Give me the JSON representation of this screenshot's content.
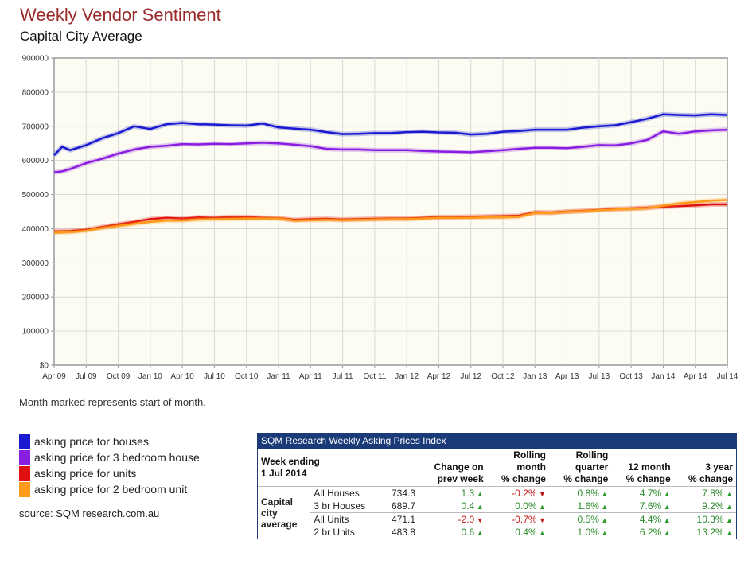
{
  "title": "Weekly Vendor Sentiment",
  "subtitle": "Capital City Average",
  "note": "Month marked represents start of month.",
  "source": "source: SQM research.com.au",
  "legend": [
    {
      "label": "asking price for houses",
      "color": "#1a1ad0"
    },
    {
      "label": "asking price for 3 bedroom house",
      "color": "#8a1ee0"
    },
    {
      "label": "asking price for units",
      "color": "#e01010"
    },
    {
      "label": "asking price for 2 bedroom unit",
      "color": "#ff9a1a"
    }
  ],
  "chart_data": {
    "type": "line",
    "title": "Weekly Vendor Sentiment",
    "subtitle": "Capital City Average",
    "xlabel": "",
    "ylabel": "",
    "ylim": [
      0,
      900000
    ],
    "y_ticks": [
      "$0",
      "100000",
      "200000",
      "300000",
      "400000",
      "500000",
      "600000",
      "700000",
      "800000",
      "900000"
    ],
    "x_ticks": [
      "Apr 09",
      "Jul 09",
      "Oct 09",
      "Jan 10",
      "Apr 10",
      "Jul 10",
      "Oct 10",
      "Jan 11",
      "Apr 11",
      "Jul 11",
      "Oct 11",
      "Jan 12",
      "Apr 12",
      "Jul 12",
      "Oct 12",
      "Jan 13",
      "Apr 13",
      "Jul 13",
      "Oct 13",
      "Jan 14",
      "Apr 14",
      "Jul 14"
    ],
    "x_index_range": [
      0,
      21
    ],
    "grid": true,
    "series": [
      {
        "name": "asking price for houses",
        "color": "#1a1ad0",
        "x": [
          0,
          0.25,
          0.5,
          1,
          1.5,
          2,
          2.5,
          3,
          3.5,
          4,
          4.5,
          5,
          5.5,
          6,
          6.5,
          7,
          7.5,
          8,
          8.5,
          9,
          9.5,
          10,
          10.5,
          11,
          11.5,
          12,
          12.5,
          13,
          13.5,
          14,
          14.5,
          15,
          15.5,
          16,
          16.5,
          17,
          17.5,
          18,
          18.5,
          19,
          19.5,
          20,
          20.5,
          21
        ],
        "values": [
          615000,
          640000,
          630000,
          645000,
          665000,
          680000,
          700000,
          692000,
          706000,
          710000,
          706000,
          705000,
          703000,
          702000,
          708000,
          697000,
          693000,
          690000,
          683000,
          677000,
          678000,
          680000,
          680000,
          683000,
          684000,
          682000,
          681000,
          676000,
          678000,
          684000,
          686000,
          690000,
          690000,
          690000,
          696000,
          700000,
          703000,
          712000,
          722000,
          735000,
          733000,
          732000,
          735000,
          733000
        ]
      },
      {
        "name": "asking price for 3 bedroom house",
        "color": "#8a1ee0",
        "x": [
          0,
          0.25,
          0.5,
          1,
          1.5,
          2,
          2.5,
          3,
          3.5,
          4,
          4.5,
          5,
          5.5,
          6,
          6.5,
          7,
          7.5,
          8,
          8.5,
          9,
          9.5,
          10,
          10.5,
          11,
          11.5,
          12,
          12.5,
          13,
          13.5,
          14,
          14.5,
          15,
          15.5,
          16,
          16.5,
          17,
          17.5,
          18,
          18.5,
          19,
          19.5,
          20,
          20.5,
          21
        ],
        "values": [
          565000,
          568000,
          575000,
          592000,
          605000,
          620000,
          632000,
          640000,
          643000,
          648000,
          647000,
          649000,
          648000,
          650000,
          652000,
          650000,
          646000,
          642000,
          634000,
          632000,
          632000,
          630000,
          630000,
          630000,
          628000,
          626000,
          625000,
          624000,
          627000,
          630000,
          634000,
          637000,
          637000,
          636000,
          640000,
          645000,
          644000,
          650000,
          660000,
          685000,
          678000,
          685000,
          688000,
          690000
        ]
      },
      {
        "name": "asking price for units",
        "color": "#e01010",
        "x": [
          0,
          0.5,
          1,
          1.5,
          2,
          2.5,
          3,
          3.5,
          4,
          4.5,
          5,
          5.5,
          6,
          6.5,
          7,
          7.5,
          8,
          8.5,
          9,
          9.5,
          10,
          10.5,
          11,
          11.5,
          12,
          12.5,
          13,
          13.5,
          14,
          14.5,
          15,
          15.5,
          16,
          16.5,
          17,
          17.5,
          18,
          18.5,
          19,
          19.5,
          20,
          20.5,
          21
        ],
        "values": [
          392000,
          393000,
          397000,
          405000,
          413000,
          420000,
          428000,
          432000,
          430000,
          433000,
          432000,
          434000,
          434000,
          432000,
          431000,
          426000,
          428000,
          429000,
          427000,
          428000,
          429000,
          430000,
          430000,
          432000,
          434000,
          434000,
          435000,
          436000,
          437000,
          438000,
          448000,
          447000,
          450000,
          452000,
          455000,
          458000,
          459000,
          461000,
          464000,
          466000,
          468000,
          471000,
          471000
        ]
      },
      {
        "name": "asking price for 2 bedroom unit",
        "color": "#ff9a1a",
        "x": [
          0,
          0.5,
          1,
          1.5,
          2,
          2.5,
          3,
          3.5,
          4,
          4.5,
          5,
          5.5,
          6,
          6.5,
          7,
          7.5,
          8,
          8.5,
          9,
          9.5,
          10,
          10.5,
          11,
          11.5,
          12,
          12.5,
          13,
          13.5,
          14,
          14.5,
          15,
          15.5,
          16,
          16.5,
          17,
          17.5,
          18,
          18.5,
          19,
          19.5,
          20,
          20.5,
          21
        ],
        "values": [
          388000,
          390000,
          394000,
          402000,
          408000,
          414000,
          420000,
          424000,
          424000,
          427000,
          428000,
          429000,
          430000,
          430000,
          430000,
          424000,
          425000,
          426000,
          425000,
          426000,
          427000,
          428000,
          428000,
          430000,
          432000,
          432000,
          432000,
          433000,
          433000,
          435000,
          446000,
          446000,
          449000,
          451000,
          454000,
          456000,
          458000,
          460000,
          467000,
          474000,
          478000,
          482000,
          484000
        ]
      }
    ]
  },
  "table": {
    "title": "SQM Research Weekly Asking Prices Index",
    "week_ending_label": "Week ending",
    "week_ending_date": "1 Jul 2014",
    "col_headers": [
      [
        "Change on",
        "prev week"
      ],
      [
        "Rolling",
        "month",
        "% change"
      ],
      [
        "Rolling",
        "quarter",
        "% change"
      ],
      [
        "12 month",
        "% change"
      ],
      [
        "3 year",
        "% change"
      ]
    ],
    "group_label": [
      "Capital",
      "city",
      "average"
    ],
    "rows": [
      {
        "label": "All Houses",
        "value": "734.3",
        "cells": [
          {
            "t": "1.3",
            "dir": "up"
          },
          {
            "t": "-0.2%",
            "dir": "down"
          },
          {
            "t": "0.8%",
            "dir": "up"
          },
          {
            "t": "4.7%",
            "dir": "up"
          },
          {
            "t": "7.8%",
            "dir": "up"
          }
        ]
      },
      {
        "label": "3 br Houses",
        "value": "689.7",
        "cells": [
          {
            "t": "0.4",
            "dir": "up"
          },
          {
            "t": "0.0%",
            "dir": "up"
          },
          {
            "t": "1.6%",
            "dir": "up"
          },
          {
            "t": "7.6%",
            "dir": "up"
          },
          {
            "t": "9.2%",
            "dir": "up"
          }
        ]
      },
      {
        "label": "All Units",
        "value": "471.1",
        "cells": [
          {
            "t": "-2.0",
            "dir": "down"
          },
          {
            "t": "-0.7%",
            "dir": "down"
          },
          {
            "t": "0.5%",
            "dir": "up"
          },
          {
            "t": "4.4%",
            "dir": "up"
          },
          {
            "t": "10.3%",
            "dir": "up"
          }
        ]
      },
      {
        "label": "2 br Units",
        "value": "483.8",
        "cells": [
          {
            "t": "0.6",
            "dir": "up"
          },
          {
            "t": "0.4%",
            "dir": "up"
          },
          {
            "t": "1.0%",
            "dir": "up"
          },
          {
            "t": "6.2%",
            "dir": "up"
          },
          {
            "t": "13.2%",
            "dir": "up"
          }
        ]
      }
    ]
  }
}
